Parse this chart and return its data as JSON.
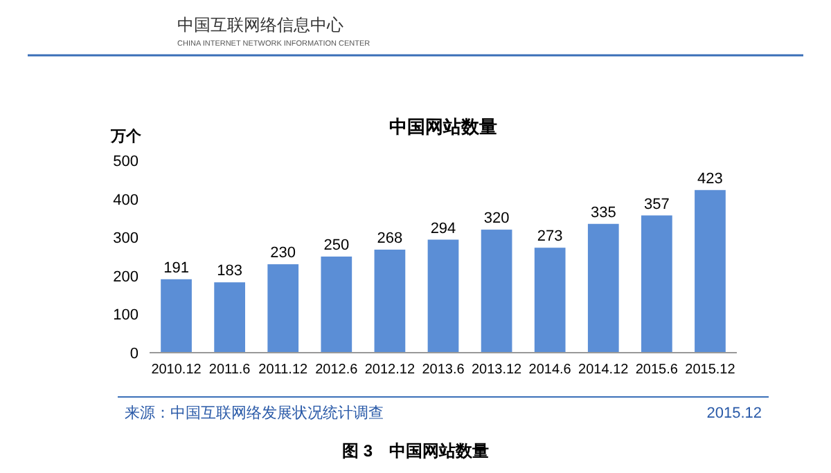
{
  "chart_data": {
    "type": "bar",
    "title": "中国网站数量",
    "ylabel": "万个",
    "categories": [
      "2010.12",
      "2011.6",
      "2011.12",
      "2012.6",
      "2012.12",
      "2013.6",
      "2013.12",
      "2014.6",
      "2014.12",
      "2015.6",
      "2015.12"
    ],
    "values": [
      191,
      183,
      230,
      250,
      268,
      294,
      320,
      273,
      335,
      357,
      423
    ],
    "color": "#5b8ed6",
    "ylim": [
      0,
      500
    ],
    "yticks": [
      0,
      100,
      200,
      300,
      400,
      500
    ],
    "data_labels": true,
    "annotations": [
      "中国互联网络信息中心",
      "CHINA INTERNET NETWORK INFORMATION CENTER",
      "来源：中国互联网络发展状况统计调查",
      "2015.12",
      "图 3　中国网站数量"
    ]
  }
}
